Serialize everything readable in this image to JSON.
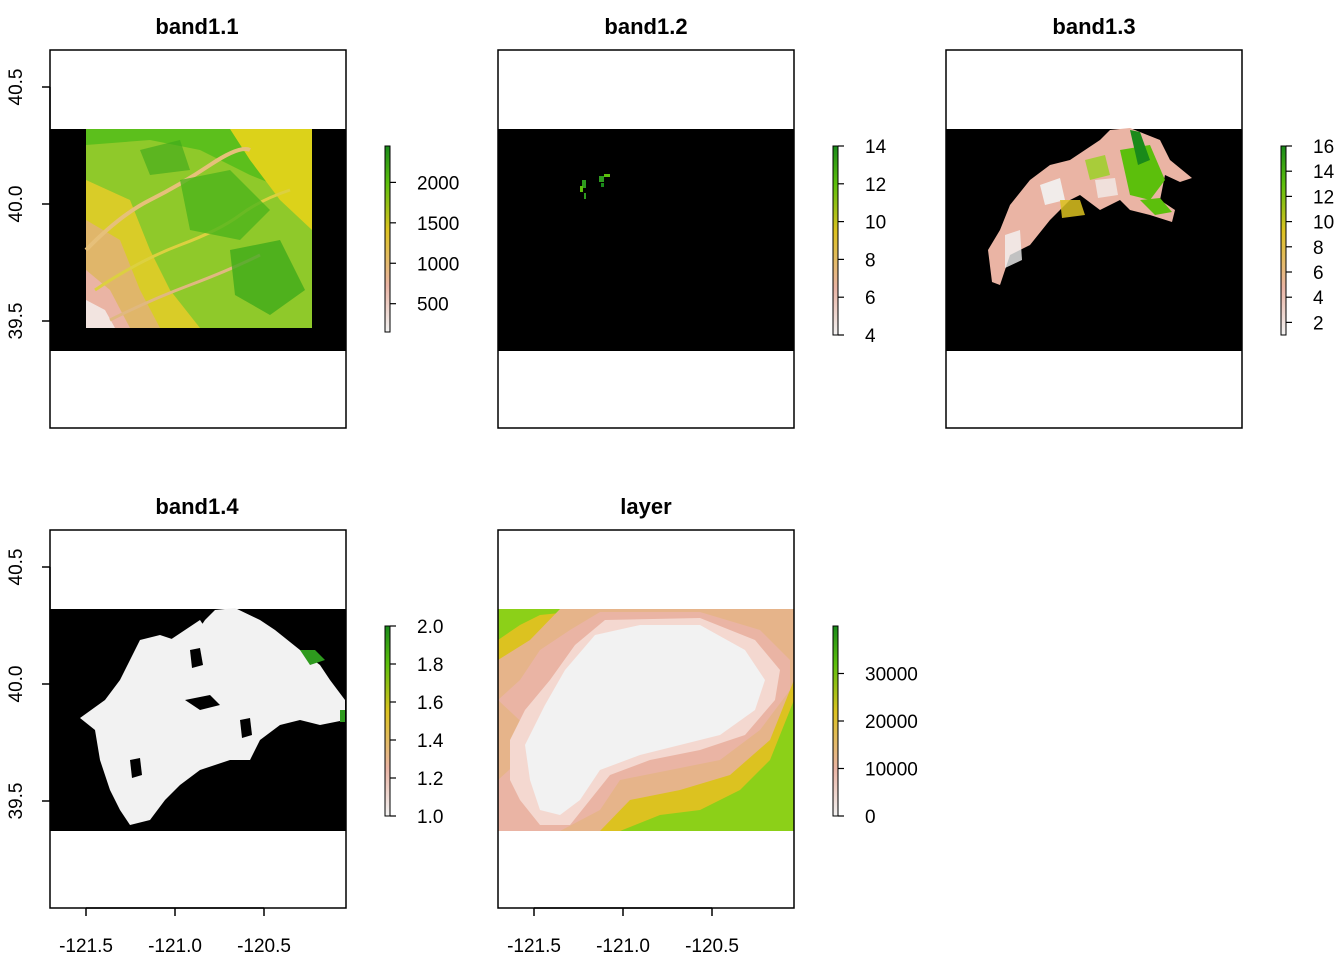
{
  "chart_data": [
    {
      "type": "heatmap",
      "title": "band1.1",
      "x_ticks": [],
      "y_ticks": [
        "39.5",
        "40.0",
        "40.5"
      ],
      "legend": {
        "ticks": [
          "500",
          "1000",
          "1500",
          "2000"
        ],
        "range": [
          150,
          2450
        ],
        "colors": [
          "#f2f2f2",
          "#eab4a4",
          "#dcc220",
          "#5cbf0c",
          "#1a8a1a"
        ]
      },
      "raster": {
        "kind": "elevation"
      }
    },
    {
      "type": "heatmap",
      "title": "band1.2",
      "x_ticks": [],
      "y_ticks": [],
      "legend": {
        "ticks": [
          "4",
          "6",
          "8",
          "10",
          "12",
          "14"
        ],
        "range": [
          4,
          14
        ],
        "colors": [
          "#f2f2f2",
          "#eab4a4",
          "#dcc220",
          "#5cbf0c",
          "#1a8a1a"
        ]
      },
      "raster": {
        "kind": "sparse"
      }
    },
    {
      "type": "heatmap",
      "title": "band1.3",
      "x_ticks": [],
      "y_ticks": [],
      "legend": {
        "ticks": [
          "2",
          "4",
          "6",
          "8",
          "10",
          "12",
          "14",
          "16"
        ],
        "range": [
          1,
          16
        ],
        "colors": [
          "#f2f2f2",
          "#eab4a4",
          "#dcc220",
          "#5cbf0c",
          "#1a8a1a"
        ]
      },
      "raster": {
        "kind": "landcover"
      }
    },
    {
      "type": "heatmap",
      "title": "band1.4",
      "x_ticks": [
        "-121.5",
        "-121.0",
        "-120.5"
      ],
      "y_ticks": [
        "39.5",
        "40.0",
        "40.5"
      ],
      "legend": {
        "ticks": [
          "1.0",
          "1.2",
          "1.4",
          "1.6",
          "1.8",
          "2.0"
        ],
        "range": [
          1,
          2
        ],
        "colors": [
          "#f2f2f2",
          "#eab4a4",
          "#dcc220",
          "#5cbf0c",
          "#1a8a1a"
        ]
      },
      "raster": {
        "kind": "mask"
      }
    },
    {
      "type": "heatmap",
      "title": "layer",
      "x_ticks": [
        "-121.5",
        "-121.0",
        "-120.5"
      ],
      "y_ticks": [],
      "legend": {
        "ticks": [
          "0",
          "10000",
          "20000",
          "30000"
        ],
        "range": [
          0,
          40000
        ],
        "colors": [
          "#f2f2f2",
          "#eab4a4",
          "#dcc220",
          "#5cbf0c",
          "#1a8a1a"
        ]
      },
      "raster": {
        "kind": "distance"
      }
    }
  ],
  "colors": {
    "nodata": "#000000",
    "frame": "#000000",
    "mask_fill": "#f2f2f2",
    "speck_green": "#2e9a1e"
  }
}
